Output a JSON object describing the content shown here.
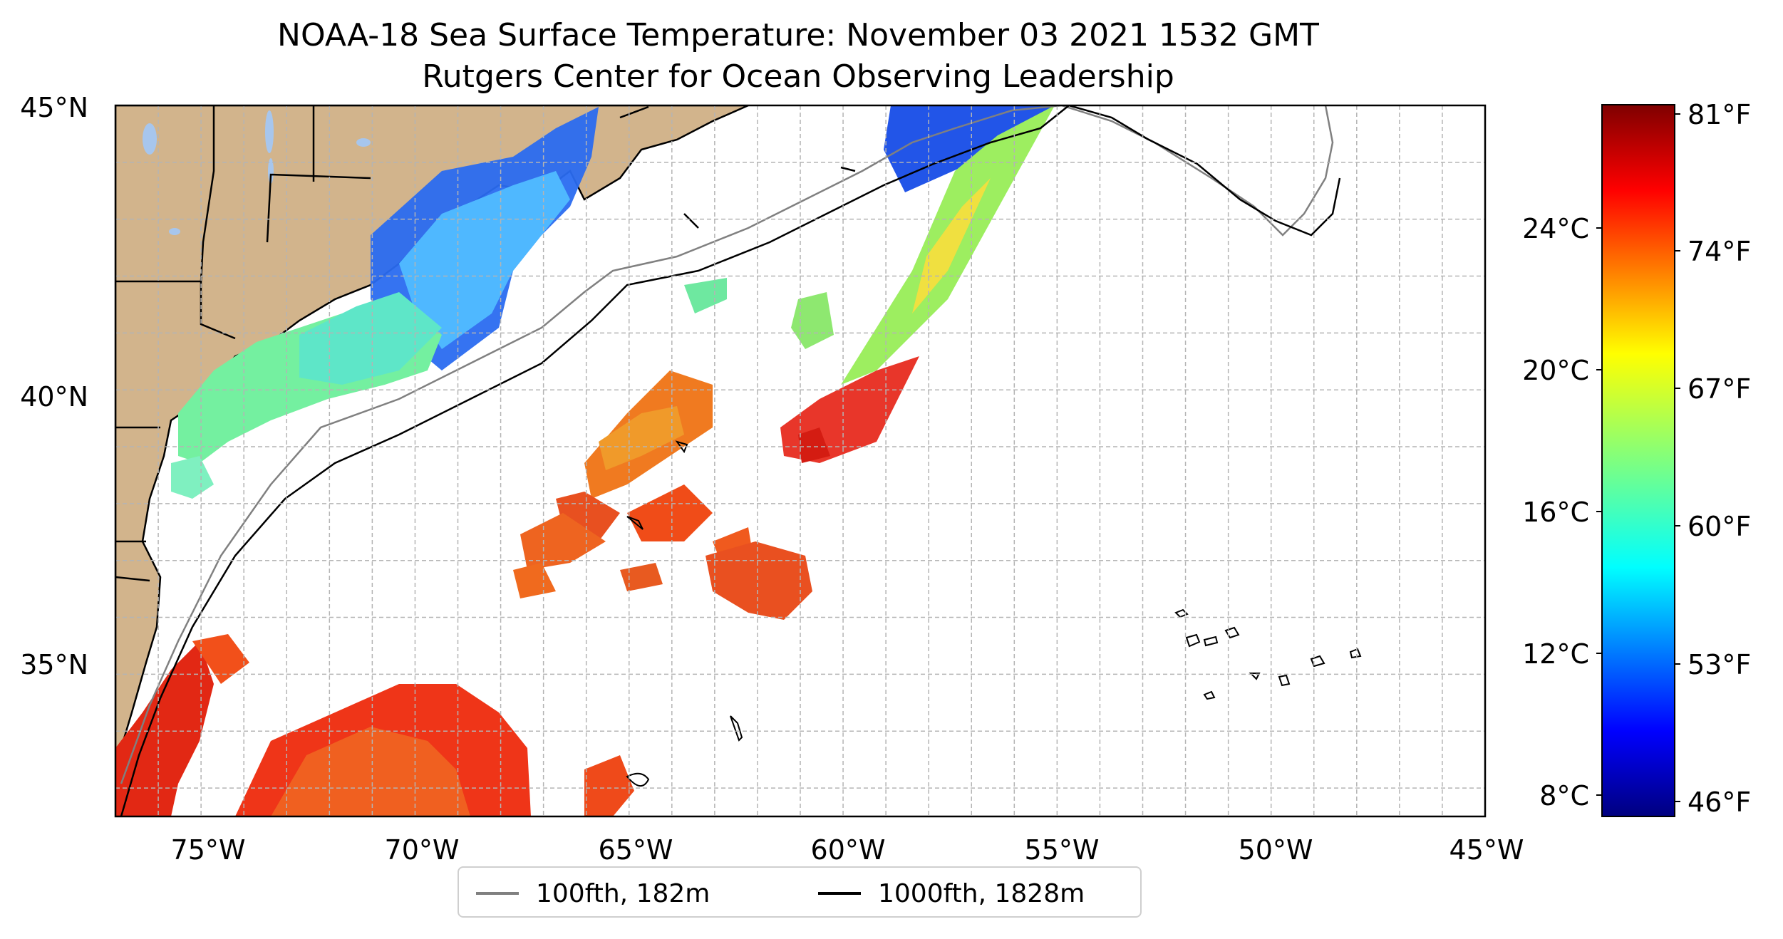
{
  "title": {
    "line1": "NOAA-18 Sea Surface Temperature: November 03 2021 1532 GMT",
    "line2": "Rutgers Center for Ocean Observing Leadership"
  },
  "map": {
    "lon_range": [
      -77,
      -45
    ],
    "lat_range": [
      32.5,
      45
    ],
    "lat_ticks": [
      "45°N",
      "40°N",
      "35°N"
    ],
    "lon_ticks": [
      "75°W",
      "70°W",
      "65°W",
      "60°W",
      "55°W",
      "50°W",
      "45°W"
    ],
    "grid": "dashed",
    "land_color": "#d2b48c",
    "lake_color": "#a7c6ed"
  },
  "colorbar": {
    "colormap": "jet",
    "celsius_ticks": [
      "24°C",
      "20°C",
      "16°C",
      "12°C",
      "8°C"
    ],
    "fahrenheit_ticks": [
      "81°F",
      "74°F",
      "67°F",
      "60°F",
      "53°F",
      "46°F"
    ]
  },
  "legend": {
    "items": [
      {
        "label": "100fth, 182m",
        "color": "#808080"
      },
      {
        "label": "1000fth, 1828m",
        "color": "#000000"
      }
    ]
  }
}
